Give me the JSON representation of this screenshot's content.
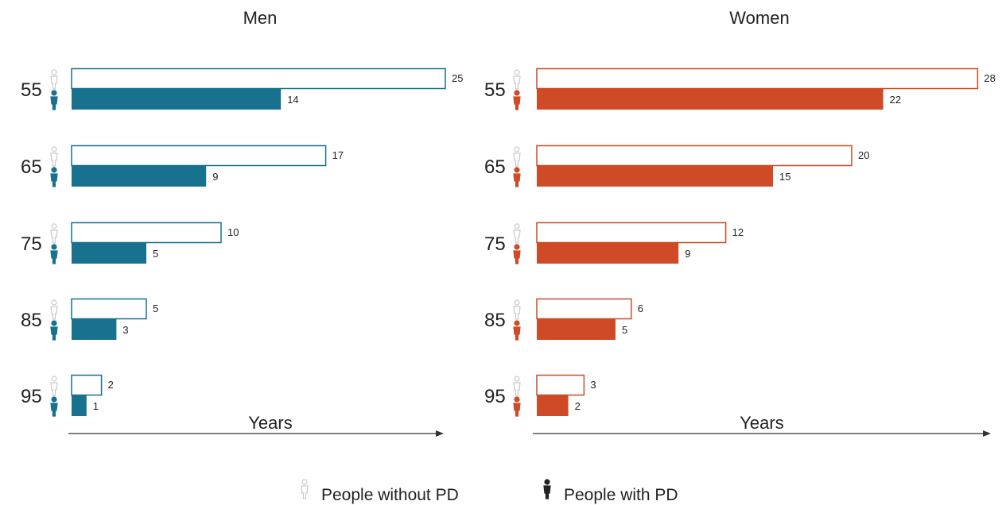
{
  "chart_data": [
    {
      "type": "bar",
      "title": "Men",
      "xlabel": "Years",
      "categories": [
        "55",
        "65",
        "75",
        "85",
        "95"
      ],
      "series": [
        {
          "name": "People without PD",
          "values": [
            25,
            17,
            10,
            5,
            2
          ]
        },
        {
          "name": "People with PD",
          "values": [
            14,
            9,
            5,
            3,
            1
          ]
        }
      ],
      "color": "#17718f",
      "orientation": "horizontal"
    },
    {
      "type": "bar",
      "title": "Women",
      "xlabel": "Years",
      "categories": [
        "55",
        "65",
        "75",
        "85",
        "95"
      ],
      "series": [
        {
          "name": "People without PD",
          "values": [
            28,
            20,
            12,
            6,
            3
          ]
        },
        {
          "name": "People with PD",
          "values": [
            22,
            15,
            9,
            5,
            2
          ]
        }
      ],
      "color": "#cf4a26",
      "orientation": "horizontal"
    }
  ],
  "legend": {
    "items": [
      "People without PD",
      "People with PD"
    ],
    "placement": "bottom-center"
  }
}
